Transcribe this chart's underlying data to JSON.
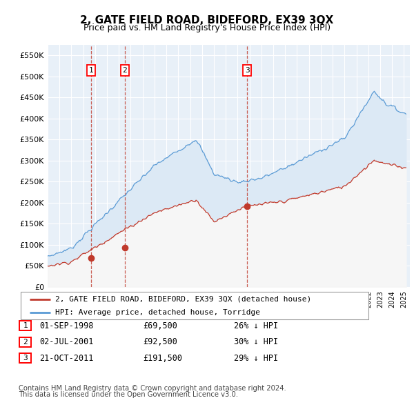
{
  "title": "2, GATE FIELD ROAD, BIDEFORD, EX39 3QX",
  "subtitle": "Price paid vs. HM Land Registry's House Price Index (HPI)",
  "ylabel_ticks": [
    "£0",
    "£50K",
    "£100K",
    "£150K",
    "£200K",
    "£250K",
    "£300K",
    "£350K",
    "£400K",
    "£450K",
    "£500K",
    "£550K"
  ],
  "ytick_values": [
    0,
    50000,
    100000,
    150000,
    200000,
    250000,
    300000,
    350000,
    400000,
    450000,
    500000,
    550000
  ],
  "ylim": [
    0,
    575000
  ],
  "xlim_start": 1995.0,
  "xlim_end": 2025.5,
  "hpi_color": "#5b9bd5",
  "price_color": "#c0392b",
  "hpi_fill_color": "#dce9f5",
  "background_color": "#e8f0f8",
  "grid_color": "#ffffff",
  "sale1_date": 1998.67,
  "sale1_price": 69500,
  "sale2_date": 2001.5,
  "sale2_price": 92500,
  "sale3_date": 2011.8,
  "sale3_price": 191500,
  "legend_line1": "2, GATE FIELD ROAD, BIDEFORD, EX39 3QX (detached house)",
  "legend_line2": "HPI: Average price, detached house, Torridge",
  "table_entries": [
    {
      "num": "1",
      "date": "01-SEP-1998",
      "price": "£69,500",
      "hpi": "26% ↓ HPI"
    },
    {
      "num": "2",
      "date": "02-JUL-2001",
      "price": "£92,500",
      "hpi": "30% ↓ HPI"
    },
    {
      "num": "3",
      "date": "21-OCT-2011",
      "price": "£191,500",
      "hpi": "29% ↓ HPI"
    }
  ],
  "footnote1": "Contains HM Land Registry data © Crown copyright and database right 2024.",
  "footnote2": "This data is licensed under the Open Government Licence v3.0."
}
